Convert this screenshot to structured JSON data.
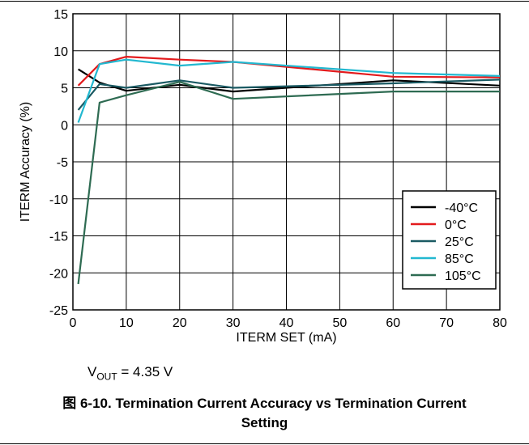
{
  "chart_data": {
    "type": "line",
    "xlabel": "ITERM SET (mA)",
    "ylabel": "ITERM Accuracy (%)",
    "xlim": [
      0,
      80
    ],
    "ylim": [
      -25,
      15
    ],
    "xticks": [
      0,
      10,
      20,
      30,
      40,
      50,
      60,
      70,
      80
    ],
    "yticks": [
      15,
      10,
      5,
      0,
      -5,
      -10,
      -15,
      -20,
      -25
    ],
    "grid": true,
    "legend_position": "bottom-right",
    "series": [
      {
        "name": "-40°C",
        "color": "#000000",
        "x": [
          1,
          5,
          10,
          20,
          30,
          60,
          80
        ],
        "y": [
          7.5,
          5.7,
          4.6,
          5.4,
          4.5,
          6.0,
          5.3
        ]
      },
      {
        "name": "0°C",
        "color": "#e31a1c",
        "x": [
          1,
          5,
          10,
          20,
          30,
          60,
          80
        ],
        "y": [
          5.3,
          8.2,
          9.2,
          8.8,
          8.5,
          6.5,
          6.4
        ]
      },
      {
        "name": "25°C",
        "color": "#1a5a63",
        "x": [
          1,
          5,
          10,
          20,
          30,
          60,
          80
        ],
        "y": [
          2.0,
          5.5,
          5.0,
          6.0,
          5.0,
          5.6,
          6.1
        ]
      },
      {
        "name": "85°C",
        "color": "#22b8d0",
        "x": [
          1,
          5,
          10,
          20,
          30,
          60,
          80
        ],
        "y": [
          0.3,
          8.2,
          8.8,
          8.0,
          8.5,
          7.0,
          6.6
        ]
      },
      {
        "name": "105°C",
        "color": "#2e6b52",
        "x": [
          1,
          5,
          10,
          20,
          30,
          60,
          80
        ],
        "y": [
          -21.5,
          3.0,
          4.0,
          5.8,
          3.5,
          4.5,
          4.5
        ]
      }
    ]
  },
  "annotation": {
    "prefix": "V",
    "subscript": "OUT",
    "suffix": " = 4.35 V"
  },
  "caption": {
    "line1": "图 6-10. Termination Current Accuracy vs Termination Current",
    "line2": "Setting"
  }
}
